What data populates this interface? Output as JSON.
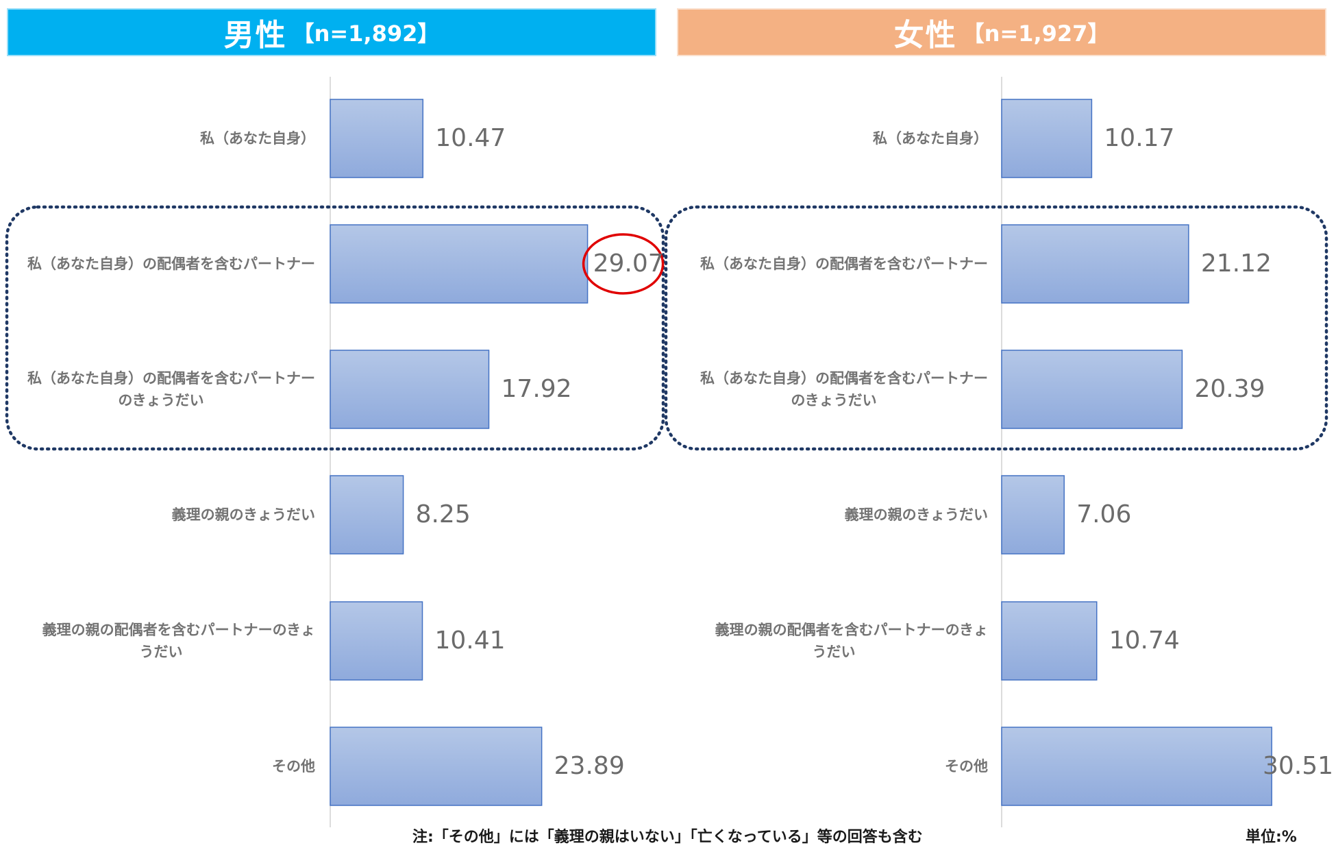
{
  "panels": [
    {
      "title": "男性",
      "n_label": "【n=1,892】",
      "color": "#00b0f0"
    },
    {
      "title": "女性",
      "n_label": "【n=1,927】",
      "color": "#f4b183"
    }
  ],
  "chart_data": [
    {
      "type": "bar",
      "orientation": "horizontal",
      "title": "男性【n=1,892】",
      "categories": [
        [
          "私（あなた自身）"
        ],
        [
          "私（あなた自身）の配偶者を含むパートナー"
        ],
        [
          "私（あなた自身）の配偶者を含むパートナー",
          "のきょうだい"
        ],
        [
          "義理の親のきょうだい"
        ],
        [
          "義理の親の配偶者を含むパートナーのきょ",
          "うだい"
        ],
        [
          "その他"
        ]
      ],
      "values": [
        10.47,
        29.07,
        17.92,
        8.25,
        10.41,
        23.89
      ],
      "value_labels": [
        "10.47",
        "29.07",
        "17.92",
        "8.25",
        "10.41",
        "23.89"
      ],
      "highlighted_value_index": 1,
      "grouped_categories": [
        1,
        2
      ],
      "xlim": [
        0,
        37
      ]
    },
    {
      "type": "bar",
      "orientation": "horizontal",
      "title": "女性【n=1,927】",
      "categories": [
        [
          "私（あなた自身）"
        ],
        [
          "私（あなた自身）の配偶者を含むパートナー"
        ],
        [
          "私（あなた自身）の配偶者を含むパートナー",
          "のきょうだい"
        ],
        [
          "義理の親のきょうだい"
        ],
        [
          "義理の親の配偶者を含むパートナーのきょ",
          "うだい"
        ],
        [
          "その他"
        ]
      ],
      "values": [
        10.17,
        21.12,
        20.39,
        7.06,
        10.74,
        30.51
      ],
      "value_labels": [
        "10.17",
        "21.12",
        "20.39",
        "7.06",
        "10.74",
        "30.51"
      ],
      "grouped_categories": [
        1,
        2
      ],
      "xlim": [
        0,
        37
      ]
    }
  ],
  "footnote": "注:「その他」には「義理の親はいない」「亡くなっている」等の回答も含む",
  "unit_note": "単位:%",
  "colors": {
    "bar_top": "#b4c7e7",
    "bar_bottom": "#8faadc",
    "bar_border": "#4472c4",
    "group_outline": "#1f3864",
    "highlight_circle": "#e00000",
    "axis": "#d0d0d0"
  }
}
